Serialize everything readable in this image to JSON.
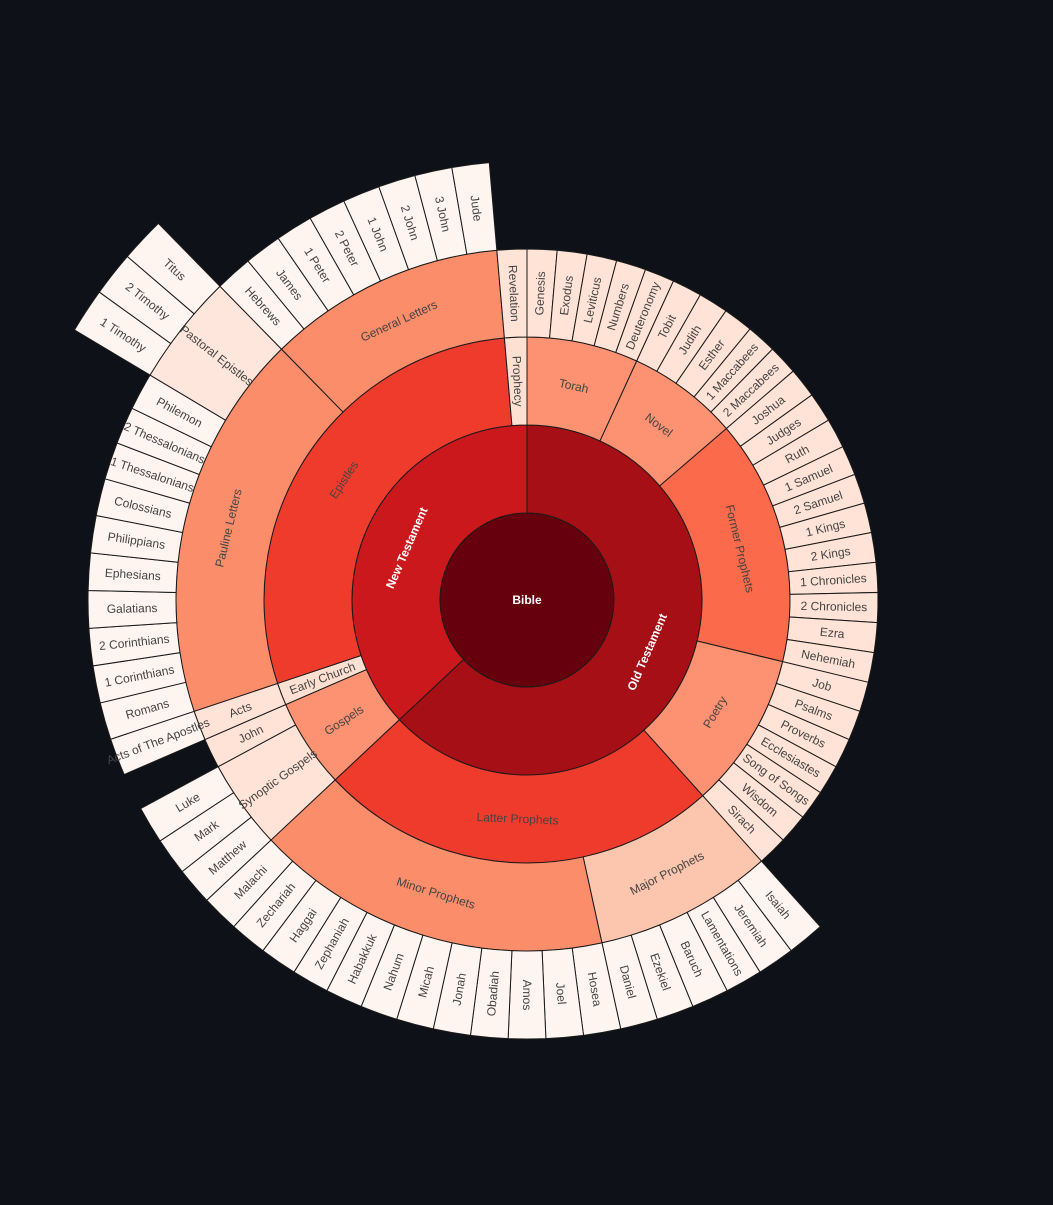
{
  "chart_data": {
    "type": "sunburst",
    "title": "",
    "colors": {
      "background": "#0e1118",
      "stroke": "#1a1a1a",
      "text_dark": "#444444",
      "text_light": "#ffffff",
      "scale": [
        "#fff5f0",
        "#fee0d2",
        "#fcbba1",
        "#fc9272",
        "#fb6a4a",
        "#ef3b2c",
        "#cb181d",
        "#a50f15",
        "#67000d"
      ]
    },
    "root": {
      "name": "Bible",
      "children": [
        {
          "name": "Old Testament",
          "children": [
            {
              "name": "Torah",
              "children": [
                {
                  "name": "Genesis"
                },
                {
                  "name": "Exodus"
                },
                {
                  "name": "Leviticus"
                },
                {
                  "name": "Numbers"
                },
                {
                  "name": "Deuteronomy"
                }
              ]
            },
            {
              "name": "Novel",
              "children": [
                {
                  "name": "Tobit"
                },
                {
                  "name": "Judith"
                },
                {
                  "name": "Esther"
                },
                {
                  "name": "1 Maccabees"
                },
                {
                  "name": "2 Maccabees"
                }
              ]
            },
            {
              "name": "Former Prophets",
              "children": [
                {
                  "name": "Joshua"
                },
                {
                  "name": "Judges"
                },
                {
                  "name": "Ruth"
                },
                {
                  "name": "1 Samuel"
                },
                {
                  "name": "2 Samuel"
                },
                {
                  "name": "1 Kings"
                },
                {
                  "name": "2 Kings"
                },
                {
                  "name": "1 Chronicles"
                },
                {
                  "name": "2 Chronicles"
                },
                {
                  "name": "Ezra"
                },
                {
                  "name": "Nehemiah"
                }
              ]
            },
            {
              "name": "Poetry",
              "children": [
                {
                  "name": "Job"
                },
                {
                  "name": "Psalms"
                },
                {
                  "name": "Proverbs"
                },
                {
                  "name": "Ecclesiastes"
                },
                {
                  "name": "Song of Songs"
                },
                {
                  "name": "Wisdom"
                },
                {
                  "name": "Sirach"
                }
              ]
            },
            {
              "name": "Latter Prophets",
              "children": [
                {
                  "name": "Major Prophets",
                  "children": [
                    {
                      "name": "Isaiah"
                    },
                    {
                      "name": "Jeremiah"
                    },
                    {
                      "name": "Lamentations"
                    },
                    {
                      "name": "Baruch"
                    },
                    {
                      "name": "Ezekiel"
                    },
                    {
                      "name": "Daniel"
                    }
                  ]
                },
                {
                  "name": "Minor Prophets",
                  "children": [
                    {
                      "name": "Hosea"
                    },
                    {
                      "name": "Joel"
                    },
                    {
                      "name": "Amos"
                    },
                    {
                      "name": "Obadiah"
                    },
                    {
                      "name": "Jonah"
                    },
                    {
                      "name": "Micah"
                    },
                    {
                      "name": "Nahum"
                    },
                    {
                      "name": "Habakkuk"
                    },
                    {
                      "name": "Zephaniah"
                    },
                    {
                      "name": "Haggai"
                    },
                    {
                      "name": "Zechariah"
                    },
                    {
                      "name": "Malachi"
                    }
                  ]
                }
              ]
            }
          ]
        },
        {
          "name": "New Testament",
          "children": [
            {
              "name": "Gospels",
              "children": [
                {
                  "name": "Synoptic Gospels",
                  "children": [
                    {
                      "name": "Matthew"
                    },
                    {
                      "name": "Mark"
                    },
                    {
                      "name": "Luke"
                    }
                  ]
                },
                {
                  "name": "John"
                }
              ]
            },
            {
              "name": "Early Church",
              "children": [
                {
                  "name": "Acts",
                  "children": [
                    {
                      "name": "Acts of The Apostles"
                    }
                  ]
                }
              ]
            },
            {
              "name": "Epistles",
              "children": [
                {
                  "name": "Pauline Letters",
                  "children": [
                    {
                      "name": "Romans"
                    },
                    {
                      "name": "1 Corinthians"
                    },
                    {
                      "name": "2 Corinthians"
                    },
                    {
                      "name": "Galatians"
                    },
                    {
                      "name": "Ephesians"
                    },
                    {
                      "name": "Philippians"
                    },
                    {
                      "name": "Colossians"
                    },
                    {
                      "name": "1 Thessalonians"
                    },
                    {
                      "name": "2 Thessalonians"
                    },
                    {
                      "name": "Philemon"
                    },
                    {
                      "name": "Pastoral Epistles",
                      "children": [
                        {
                          "name": "1 Timothy"
                        },
                        {
                          "name": "2 Timothy"
                        },
                        {
                          "name": "Titus"
                        }
                      ]
                    }
                  ]
                },
                {
                  "name": "General Letters",
                  "children": [
                    {
                      "name": "Hebrews"
                    },
                    {
                      "name": "James"
                    },
                    {
                      "name": "1 Peter"
                    },
                    {
                      "name": "2 Peter"
                    },
                    {
                      "name": "1 John"
                    },
                    {
                      "name": "2 John"
                    },
                    {
                      "name": "3 John"
                    },
                    {
                      "name": "Jude"
                    }
                  ]
                }
              ]
            },
            {
              "name": "Prophecy",
              "children": [
                {
                  "name": "Revelation"
                }
              ]
            }
          ]
        }
      ]
    }
  }
}
